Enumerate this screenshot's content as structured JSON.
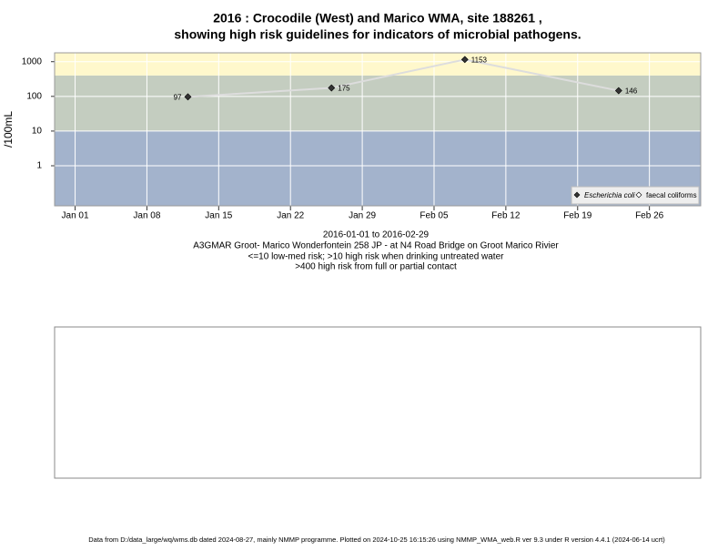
{
  "chart_data": {
    "type": "line",
    "title": "2016 : Crocodile (West) and Marico WMA, site 188261 ,",
    "subtitle": "showing high risk guidelines for indicators of microbial pathogens.",
    "y_label": "/100mL",
    "x_label": "2016-01-01 to 2016-02-29",
    "captions": [
      "A3GMAR Groot- Marico Wonderfontein 258 JP - at N4 Road Bridge on Groot Marico Rivier",
      "<=10 low-med risk; >10 high risk when drinking untreated water",
      ">400 high risk from full or partial contact"
    ],
    "footer": "Data from D:/data_large/wq/wms.db dated 2024-08-27, mainly NMMP programme. Plotted on 2024-10-25 16:15:26 using NMMP_WMA_web.R ver 9.3 under R version 4.4.1 (2024-06-14 ucrt)",
    "x": [
      "2016-01-12",
      "2016-01-26",
      "2016-02-08",
      "2016-02-23"
    ],
    "series": [
      {
        "name": "Escherichia coli",
        "color": "#333333",
        "line_color": "#dddddd",
        "values": [
          97,
          175,
          1153,
          146
        ]
      },
      {
        "name": "faecal coliforms",
        "color": "#ffffff",
        "values": [
          null,
          null,
          null,
          null
        ]
      }
    ],
    "xlim": [
      "2015-12-30",
      "2016-03-02"
    ],
    "xticks": [
      {
        "value": "2016-01-01",
        "label": "Jan 01"
      },
      {
        "value": "2016-01-08",
        "label": "Jan 08"
      },
      {
        "value": "2016-01-15",
        "label": "Jan 15"
      },
      {
        "value": "2016-01-22",
        "label": "Jan 22"
      },
      {
        "value": "2016-01-29",
        "label": "Jan 29"
      },
      {
        "value": "2016-02-05",
        "label": "Feb 05"
      },
      {
        "value": "2016-02-12",
        "label": "Feb 12"
      },
      {
        "value": "2016-02-19",
        "label": "Feb 19"
      },
      {
        "value": "2016-02-26",
        "label": "Feb 26"
      }
    ],
    "ylim": [
      0.07,
      1800
    ],
    "yticks": [
      1,
      10,
      100,
      1000
    ],
    "log_scale": true,
    "grid": true,
    "guidelines": [
      10,
      400
    ],
    "band_colors": [
      "#a3b3cc",
      "#c4cdc0",
      "#fff8cc"
    ],
    "legend": "bottom-right"
  }
}
